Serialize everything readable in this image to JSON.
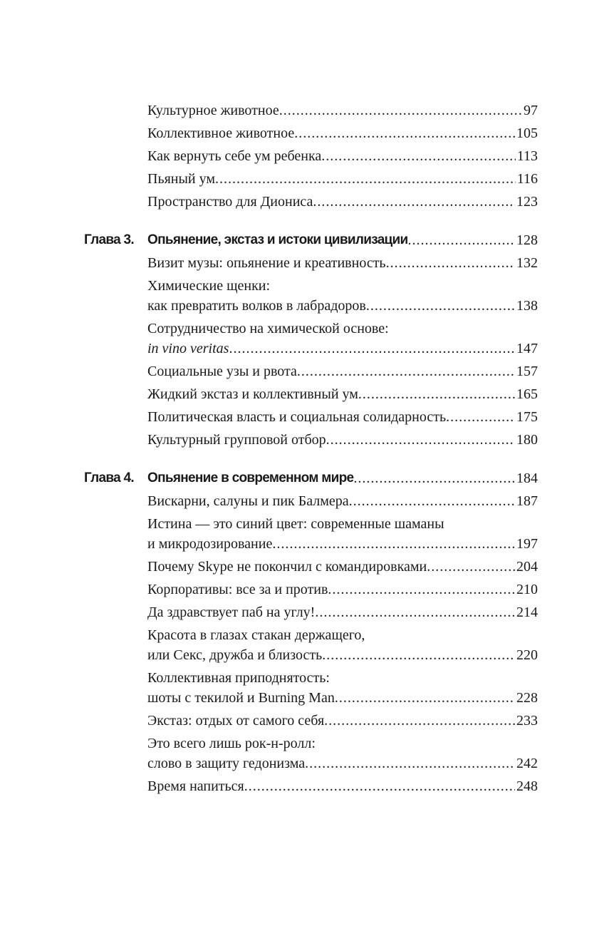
{
  "toc": [
    {
      "type": "entry",
      "lines": [
        "Культурное животное"
      ],
      "page": "97"
    },
    {
      "type": "entry",
      "lines": [
        "Коллективное животное"
      ],
      "page": "105"
    },
    {
      "type": "entry",
      "lines": [
        "Как вернуть себе ум ребенка"
      ],
      "page": "113"
    },
    {
      "type": "entry",
      "lines": [
        "Пьяный ум"
      ],
      "page": "116"
    },
    {
      "type": "entry",
      "lines": [
        "Пространство для Диониса"
      ],
      "page": "123"
    },
    {
      "type": "chapter",
      "label": "Глава 3.",
      "lines": [
        "Опьянение, экстаз и истоки цивилизации"
      ],
      "page": "128"
    },
    {
      "type": "entry",
      "lines": [
        "Визит музы: опьянение и креативность"
      ],
      "page": "132"
    },
    {
      "type": "entry",
      "lines": [
        "Химические щенки:",
        "как превратить волков в лабрадоров"
      ],
      "page": "138"
    },
    {
      "type": "entry",
      "lines": [
        "Сотрудничество на химической основе:",
        "in vino veritas"
      ],
      "page": "147",
      "italic_last": true
    },
    {
      "type": "entry",
      "lines": [
        "Социальные узы и рвота"
      ],
      "page": "157"
    },
    {
      "type": "entry",
      "lines": [
        "Жидкий экстаз и коллективный ум"
      ],
      "page": "165"
    },
    {
      "type": "entry",
      "lines": [
        "Политическая власть и социальная солидарность"
      ],
      "page": "175"
    },
    {
      "type": "entry",
      "lines": [
        "Культурный групповой отбор"
      ],
      "page": "180"
    },
    {
      "type": "chapter",
      "label": "Глава 4.",
      "lines": [
        "Опьянение в современном мире"
      ],
      "page": "184"
    },
    {
      "type": "entry",
      "lines": [
        "Вискарни, салуны и пик Балмера"
      ],
      "page": "187"
    },
    {
      "type": "entry",
      "lines": [
        "Истина — это синий цвет: современные шаманы",
        "и микродозирование"
      ],
      "page": "197"
    },
    {
      "type": "entry",
      "lines": [
        "Почему Skype не покончил с командировками"
      ],
      "page": "204"
    },
    {
      "type": "entry",
      "lines": [
        "Корпоративы: все за и против"
      ],
      "page": "210"
    },
    {
      "type": "entry",
      "lines": [
        "Да здравствует паб на углу!"
      ],
      "page": "214"
    },
    {
      "type": "entry",
      "lines": [
        "Красота в глазах стакан держащего,",
        "или Секс, дружба и близость"
      ],
      "page": "220"
    },
    {
      "type": "entry",
      "lines": [
        "Коллективная приподнятость:",
        "шоты с текилой и Burning Man"
      ],
      "page": "228"
    },
    {
      "type": "entry",
      "lines": [
        "Экстаз: отдых от самого себя"
      ],
      "page": "233"
    },
    {
      "type": "entry",
      "lines": [
        "Это всего лишь рок-н-ролл:",
        "слово в защиту гедонизма"
      ],
      "page": "242"
    },
    {
      "type": "entry",
      "lines": [
        "Время напиться"
      ],
      "page": "248"
    }
  ]
}
